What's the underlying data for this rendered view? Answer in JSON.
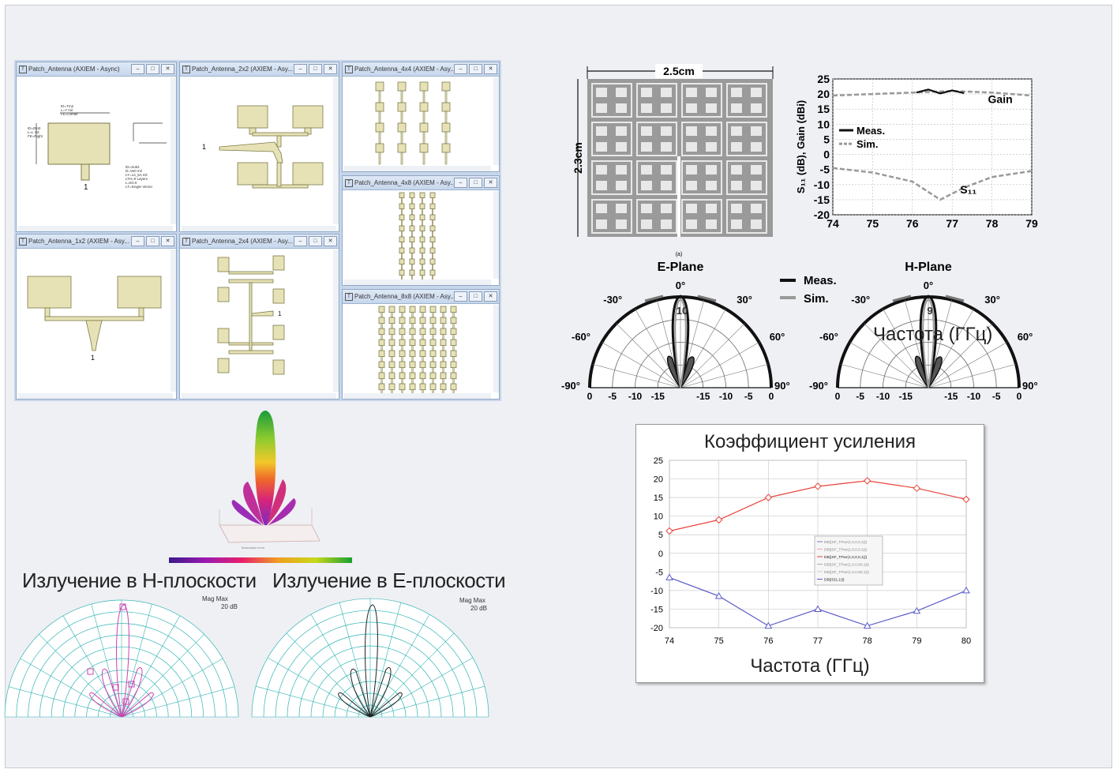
{
  "windows": [
    {
      "title": "Patch_Antenna (AXIEM - Async)",
      "texts": [
        "ID=Tm2",
        "L=Y mil",
        "FE=Center",
        "ID=Din0",
        "L=L mil",
        "FE=Right",
        "ID=Sub4",
        "D=Ve0 mil",
        "LY=14_5A mil",
        "LTH=0 Layers",
        "L=E0.0",
        "LT=Single Vector"
      ]
    },
    {
      "title": "Patch_Antenna_2x2 (AXIEM - Asy..."
    },
    {
      "title": "Patch_Antenna_4x4 (AXIEM - Asy..."
    },
    {
      "title": "Patch_Antenna_4x8 (AXIEM - Asy..."
    },
    {
      "title": "Patch_Antenna_1x2 (AXIEM - Asy..."
    },
    {
      "title": "Patch_Antenna_2x4 (AXIEM - Asy..."
    },
    {
      "title": "Patch_Antenna_8x8 (AXIEM - Asy..."
    }
  ],
  "port_label": "1",
  "fractal": {
    "width_label": "2.5cm",
    "height_label": "2.3cm",
    "caption": "(a)"
  },
  "s11_chart": {
    "ylabel": "S₁₁ (dB), Gain (dBi)",
    "xticks": [
      "74",
      "75",
      "76",
      "77",
      "78",
      "79"
    ],
    "yticks": [
      "25",
      "20",
      "15",
      "10",
      "5",
      "0",
      "-5",
      "-10",
      "-15",
      "-20"
    ],
    "legend": [
      "Meas.",
      "Sim."
    ],
    "gain_label": "Gain",
    "s11_label": "S₁₁"
  },
  "polar_top": {
    "eplane": "E-Plane",
    "hplane": "H-Plane",
    "legend": [
      "Meas.",
      "Sim."
    ],
    "angles": [
      "0°",
      "30°",
      "60°",
      "90°",
      "-30°",
      "-60°",
      "-90°"
    ],
    "rticks": [
      "0",
      "-5",
      "-10",
      "-15",
      "-15",
      "-10",
      "-5",
      "0"
    ],
    "e_inner": "10",
    "h_inner": "9",
    "overlay": "Частота (ГГц)"
  },
  "gain_chart": {
    "title": "Коэффициент усиления",
    "xlabel": "Частота (ГГц)",
    "legend": [
      "DB(|SF_TPwr(1,0,0,0,1)|)",
      "DB(|SF_TPwr(1,0,0,0,1)|)",
      "DB(|SF_TPwr(1,0,0,0,1)|)",
      "DB(|SF_TPwr(1,0,0,90,1)|)",
      "DB(|SF_TPwr(1,0,0,90,1)|)",
      "DB(|S(1,1)|)"
    ]
  },
  "chart_data": {
    "type": "line",
    "title": "Коэффициент усиления",
    "xlabel": "Частота (ГГц)",
    "ylabel": "",
    "x": [
      74,
      75,
      76,
      77,
      78,
      79,
      80
    ],
    "ylim": [
      -20,
      25
    ],
    "yticks": [
      25,
      20,
      15,
      10,
      5,
      0,
      -5,
      -10,
      -15,
      -20
    ],
    "grid": true,
    "series": [
      {
        "name": "DB(|SF_TPwr(1,0,0,0,1)|)",
        "values": [
          6,
          9,
          15,
          18,
          19.5,
          17.5,
          14.5
        ],
        "color": "#e8433a"
      },
      {
        "name": "DB(|S(1,1)|)",
        "values": [
          -6.5,
          -11.5,
          -19.5,
          -15,
          -19.5,
          -15.5,
          -10
        ],
        "color": "#5b5bc8"
      }
    ]
  },
  "pattern3d": {
    "caption": "Максимум поля"
  },
  "plane_labels": {
    "h": "Излучение в H-плоскости",
    "e": "Излучение в E-плоскости"
  },
  "mag_max": {
    "label": "Mag Max",
    "value": "20 dB"
  }
}
